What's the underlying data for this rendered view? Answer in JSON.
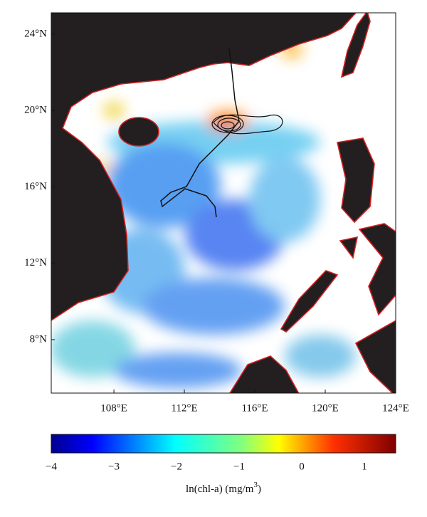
{
  "map": {
    "lon_range": [
      104.44,
      124
    ],
    "lat_range": [
      5.2,
      25.12
    ],
    "lon_ticks": [
      {
        "value": 108,
        "label": "108°E"
      },
      {
        "value": 112,
        "label": "112°E"
      },
      {
        "value": 116,
        "label": "116°E"
      },
      {
        "value": 120,
        "label": "120°E"
      },
      {
        "value": 124,
        "label": "124°E"
      }
    ],
    "lat_ticks": [
      {
        "value": 24,
        "label": "24°N"
      },
      {
        "value": 20,
        "label": "20°N"
      },
      {
        "value": 16,
        "label": "16°N"
      },
      {
        "value": 12,
        "label": "12°N"
      },
      {
        "value": 8,
        "label": "8°N"
      }
    ],
    "colorbar": {
      "range": [
        -4,
        1.5
      ],
      "ticks": [
        {
          "value": -4,
          "label": "−4"
        },
        {
          "value": -3,
          "label": "−3"
        },
        {
          "value": -2,
          "label": "−2"
        },
        {
          "value": -1,
          "label": "−1"
        },
        0,
        1
      ],
      "label": "ln(chl-a) (mg/m",
      "label_sup": "3",
      "label_end": ")"
    }
  }
}
